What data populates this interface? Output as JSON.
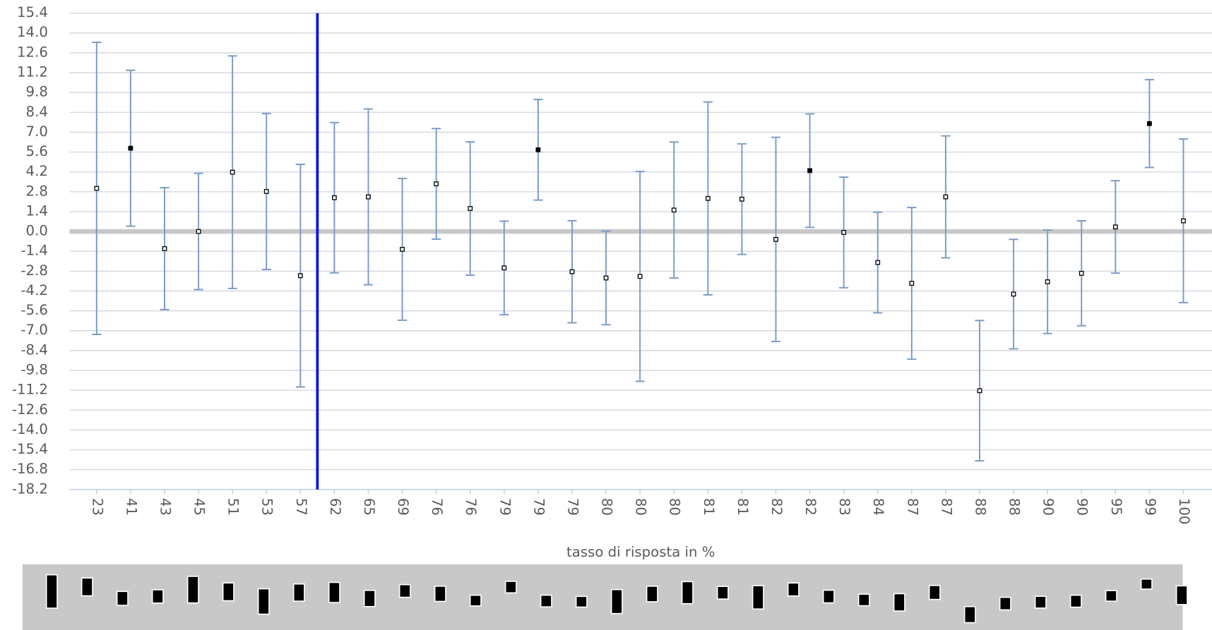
{
  "chart_data": {
    "type": "errorbar",
    "x_label": "tasso di risposta in %",
    "categories": [
      "23",
      "41",
      "43",
      "45",
      "51",
      "53",
      "57",
      "62",
      "65",
      "69",
      "76",
      "76",
      "79",
      "79",
      "79",
      "80",
      "80",
      "80",
      "81",
      "81",
      "82",
      "82",
      "83",
      "84",
      "87",
      "87",
      "88",
      "88",
      "90",
      "90",
      "95",
      "99",
      "100"
    ],
    "values": [
      3.04,
      5.87,
      -1.21,
      0.0,
      4.18,
      2.82,
      -3.12,
      2.38,
      2.44,
      -1.26,
      3.36,
      1.62,
      -2.57,
      5.76,
      -2.84,
      -3.28,
      -3.17,
      1.51,
      2.33,
      2.28,
      -0.56,
      4.29,
      -0.07,
      -2.19,
      -3.66,
      2.44,
      -11.23,
      -4.42,
      -3.55,
      -2.95,
      0.32,
      7.61,
      0.75
    ],
    "errors": [
      10.3,
      5.5,
      4.3,
      4.1,
      8.2,
      5.5,
      7.85,
      5.3,
      6.2,
      5.0,
      3.9,
      4.7,
      3.3,
      3.55,
      3.6,
      3.3,
      7.4,
      4.8,
      6.8,
      3.9,
      7.2,
      4.0,
      3.9,
      3.55,
      5.35,
      4.3,
      4.95,
      3.86,
      3.65,
      3.7,
      3.26,
      3.1,
      5.77
    ],
    "color": "#7a9cc6",
    "ylim": [
      -18.2,
      15.4
    ],
    "yticks": [
      15.4,
      {
        "value": 14.0,
        "label": "14.0"
      },
      12.6,
      11.2,
      9.8,
      8.4,
      {
        "value": 7.0,
        "label": "7.0"
      },
      5.6,
      4.2,
      2.8,
      1.4,
      {
        "value": 0.0,
        "label": "0.0"
      },
      -1.4,
      -2.8,
      -4.2,
      -5.6,
      {
        "value": -7.0,
        "label": "-7.0"
      },
      -8.4,
      -9.8,
      -11.2,
      -12.6,
      {
        "value": -14.0,
        "label": "-14.0"
      },
      -15.4,
      -16.8,
      -18.2
    ],
    "grid": true
  }
}
